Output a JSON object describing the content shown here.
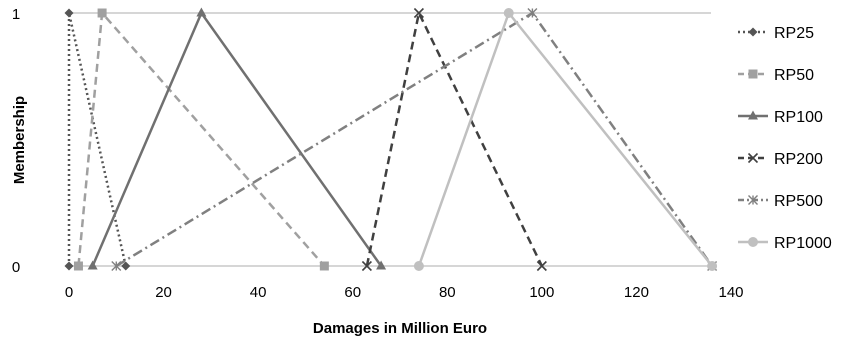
{
  "chart_data": {
    "type": "line",
    "xlabel": "Damages in Million Euro",
    "ylabel": "Membership",
    "xlim": [
      0,
      140
    ],
    "ylim": [
      0,
      1
    ],
    "x_ticks": [
      0,
      20,
      40,
      60,
      80,
      100,
      120,
      140
    ],
    "y_ticks": [
      0,
      1
    ],
    "grid": "horizontal at y=0 and y=1",
    "legend_position": "right",
    "series": [
      {
        "name": "RP25",
        "color": "#555555",
        "dash": "dotted",
        "marker": "diamond",
        "x": [
          0,
          0,
          12
        ],
        "y": [
          0,
          1,
          0
        ]
      },
      {
        "name": "RP50",
        "color": "#a0a0a0",
        "dash": "dashed",
        "marker": "square",
        "x": [
          2,
          7,
          54
        ],
        "y": [
          0,
          1,
          0
        ]
      },
      {
        "name": "RP100",
        "color": "#707070",
        "dash": "solid",
        "marker": "triangle",
        "x": [
          5,
          28,
          66
        ],
        "y": [
          0,
          1,
          0
        ]
      },
      {
        "name": "RP200",
        "color": "#404040",
        "dash": "dashed",
        "marker": "x",
        "x": [
          63,
          74,
          100
        ],
        "y": [
          0,
          1,
          0
        ]
      },
      {
        "name": "RP500",
        "color": "#808080",
        "dash": "dash-dot",
        "marker": "asterisk",
        "x": [
          10,
          98,
          136
        ],
        "y": [
          0,
          1,
          0
        ]
      },
      {
        "name": "RP1000",
        "color": "#c0c0c0",
        "dash": "solid",
        "marker": "circle",
        "x": [
          74,
          93,
          136
        ],
        "y": [
          0,
          1,
          0
        ]
      }
    ]
  }
}
